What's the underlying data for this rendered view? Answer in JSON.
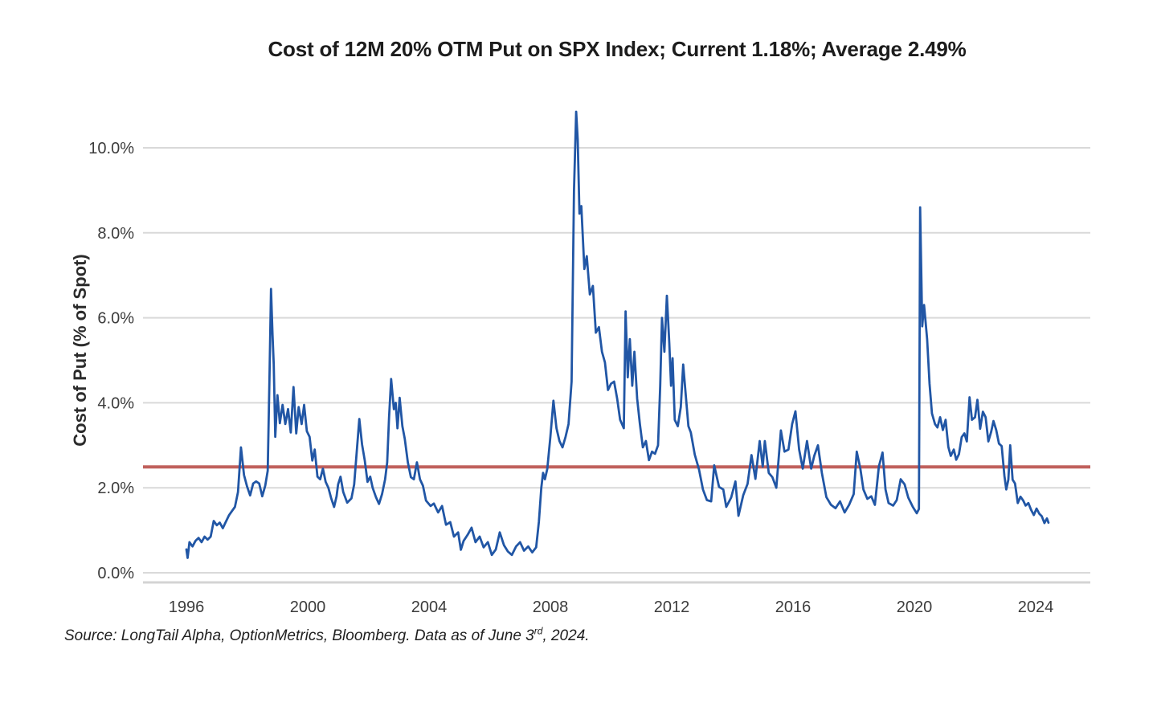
{
  "chart_data": {
    "type": "line",
    "title": "Cost of 12M 20% OTM Put on SPX Index; Current 1.18%; Average 2.49%",
    "ylabel": "Cost of Put (% of Spot)",
    "xlabel": "",
    "current_pct": 1.18,
    "average_pct": 2.49,
    "grid": "horizontal",
    "legend": "none",
    "ylim": [
      0,
      11.2
    ],
    "xlim": [
      1994.6,
      2025.8
    ],
    "x_ticks": [
      1996,
      2000,
      2004,
      2008,
      2012,
      2016,
      2020,
      2024
    ],
    "y_ticks": [
      {
        "value": 0,
        "label": "0.0%"
      },
      {
        "value": 2,
        "label": "2.0%"
      },
      {
        "value": 4,
        "label": "4.0%"
      },
      {
        "value": 6,
        "label": "6.0%"
      },
      {
        "value": 8,
        "label": "8.0%"
      },
      {
        "value": 10,
        "label": "10.0%"
      }
    ],
    "colors": {
      "series": "#2156a5",
      "average_line": "#c0605c",
      "gridline": "#d9d9d9",
      "axis_line": "#d4d4d4"
    },
    "average_line": {
      "value": 2.49
    },
    "series": [
      {
        "name": "Cost of 12M 20% OTM Put on SPX (% of spot)",
        "points": [
          [
            1996.0,
            0.55
          ],
          [
            1996.04,
            0.35
          ],
          [
            1996.1,
            0.72
          ],
          [
            1996.2,
            0.62
          ],
          [
            1996.3,
            0.75
          ],
          [
            1996.4,
            0.82
          ],
          [
            1996.5,
            0.72
          ],
          [
            1996.6,
            0.85
          ],
          [
            1996.7,
            0.78
          ],
          [
            1996.8,
            0.85
          ],
          [
            1996.9,
            1.22
          ],
          [
            1997.0,
            1.12
          ],
          [
            1997.1,
            1.18
          ],
          [
            1997.2,
            1.05
          ],
          [
            1997.3,
            1.2
          ],
          [
            1997.4,
            1.35
          ],
          [
            1997.5,
            1.45
          ],
          [
            1997.6,
            1.55
          ],
          [
            1997.7,
            1.9
          ],
          [
            1997.8,
            2.95
          ],
          [
            1997.9,
            2.3
          ],
          [
            1998.0,
            2.03
          ],
          [
            1998.1,
            1.82
          ],
          [
            1998.2,
            2.1
          ],
          [
            1998.3,
            2.15
          ],
          [
            1998.4,
            2.1
          ],
          [
            1998.5,
            1.8
          ],
          [
            1998.6,
            2.05
          ],
          [
            1998.68,
            2.4
          ],
          [
            1998.74,
            4.6
          ],
          [
            1998.79,
            6.68
          ],
          [
            1998.84,
            5.6
          ],
          [
            1998.88,
            4.9
          ],
          [
            1998.93,
            3.2
          ],
          [
            1999.0,
            4.18
          ],
          [
            1999.08,
            3.52
          ],
          [
            1999.17,
            3.95
          ],
          [
            1999.26,
            3.5
          ],
          [
            1999.35,
            3.85
          ],
          [
            1999.44,
            3.3
          ],
          [
            1999.53,
            4.37
          ],
          [
            1999.62,
            3.28
          ],
          [
            1999.7,
            3.9
          ],
          [
            1999.8,
            3.5
          ],
          [
            1999.88,
            3.95
          ],
          [
            1999.97,
            3.33
          ],
          [
            2000.06,
            3.2
          ],
          [
            2000.15,
            2.64
          ],
          [
            2000.23,
            2.9
          ],
          [
            2000.32,
            2.26
          ],
          [
            2000.41,
            2.2
          ],
          [
            2000.5,
            2.45
          ],
          [
            2000.59,
            2.14
          ],
          [
            2000.68,
            2.0
          ],
          [
            2000.77,
            1.76
          ],
          [
            2000.87,
            1.55
          ],
          [
            2000.95,
            1.8
          ],
          [
            2001.0,
            2.08
          ],
          [
            2001.08,
            2.26
          ],
          [
            2001.17,
            1.9
          ],
          [
            2001.3,
            1.65
          ],
          [
            2001.44,
            1.75
          ],
          [
            2001.53,
            2.08
          ],
          [
            2001.62,
            2.9
          ],
          [
            2001.7,
            3.62
          ],
          [
            2001.79,
            3.02
          ],
          [
            2001.88,
            2.64
          ],
          [
            2001.97,
            2.14
          ],
          [
            2002.06,
            2.26
          ],
          [
            2002.14,
            2.0
          ],
          [
            2002.25,
            1.78
          ],
          [
            2002.35,
            1.62
          ],
          [
            2002.45,
            1.85
          ],
          [
            2002.55,
            2.2
          ],
          [
            2002.62,
            2.6
          ],
          [
            2002.68,
            3.65
          ],
          [
            2002.75,
            4.56
          ],
          [
            2002.84,
            3.85
          ],
          [
            2002.9,
            4.0
          ],
          [
            2002.96,
            3.4
          ],
          [
            2003.03,
            4.12
          ],
          [
            2003.12,
            3.45
          ],
          [
            2003.2,
            3.15
          ],
          [
            2003.3,
            2.6
          ],
          [
            2003.4,
            2.25
          ],
          [
            2003.5,
            2.2
          ],
          [
            2003.6,
            2.6
          ],
          [
            2003.7,
            2.2
          ],
          [
            2003.8,
            2.05
          ],
          [
            2003.9,
            1.7
          ],
          [
            2004.05,
            1.57
          ],
          [
            2004.16,
            1.63
          ],
          [
            2004.3,
            1.42
          ],
          [
            2004.43,
            1.57
          ],
          [
            2004.56,
            1.13
          ],
          [
            2004.7,
            1.19
          ],
          [
            2004.82,
            0.85
          ],
          [
            2004.96,
            0.95
          ],
          [
            2005.05,
            0.54
          ],
          [
            2005.14,
            0.75
          ],
          [
            2005.27,
            0.89
          ],
          [
            2005.4,
            1.06
          ],
          [
            2005.53,
            0.72
          ],
          [
            2005.67,
            0.85
          ],
          [
            2005.8,
            0.6
          ],
          [
            2005.94,
            0.72
          ],
          [
            2006.07,
            0.42
          ],
          [
            2006.2,
            0.55
          ],
          [
            2006.33,
            0.95
          ],
          [
            2006.47,
            0.65
          ],
          [
            2006.6,
            0.5
          ],
          [
            2006.73,
            0.42
          ],
          [
            2006.87,
            0.62
          ],
          [
            2007.0,
            0.72
          ],
          [
            2007.13,
            0.52
          ],
          [
            2007.27,
            0.62
          ],
          [
            2007.4,
            0.48
          ],
          [
            2007.53,
            0.6
          ],
          [
            2007.62,
            1.2
          ],
          [
            2007.7,
            2.0
          ],
          [
            2007.76,
            2.35
          ],
          [
            2007.82,
            2.2
          ],
          [
            2007.9,
            2.45
          ],
          [
            2008.0,
            3.2
          ],
          [
            2008.1,
            4.05
          ],
          [
            2008.2,
            3.4
          ],
          [
            2008.3,
            3.1
          ],
          [
            2008.4,
            2.95
          ],
          [
            2008.5,
            3.2
          ],
          [
            2008.6,
            3.5
          ],
          [
            2008.7,
            4.5
          ],
          [
            2008.78,
            9.0
          ],
          [
            2008.85,
            10.85
          ],
          [
            2008.9,
            10.2
          ],
          [
            2008.96,
            8.45
          ],
          [
            2009.02,
            8.63
          ],
          [
            2009.12,
            7.15
          ],
          [
            2009.2,
            7.45
          ],
          [
            2009.3,
            6.55
          ],
          [
            2009.4,
            6.75
          ],
          [
            2009.5,
            5.65
          ],
          [
            2009.6,
            5.78
          ],
          [
            2009.7,
            5.2
          ],
          [
            2009.8,
            4.95
          ],
          [
            2009.9,
            4.3
          ],
          [
            2010.0,
            4.45
          ],
          [
            2010.1,
            4.5
          ],
          [
            2010.2,
            4.1
          ],
          [
            2010.3,
            3.6
          ],
          [
            2010.42,
            3.4
          ],
          [
            2010.48,
            6.15
          ],
          [
            2010.55,
            4.6
          ],
          [
            2010.62,
            5.5
          ],
          [
            2010.7,
            4.4
          ],
          [
            2010.77,
            5.2
          ],
          [
            2010.86,
            4.1
          ],
          [
            2010.95,
            3.5
          ],
          [
            2011.05,
            2.95
          ],
          [
            2011.15,
            3.1
          ],
          [
            2011.25,
            2.65
          ],
          [
            2011.35,
            2.85
          ],
          [
            2011.45,
            2.8
          ],
          [
            2011.55,
            3.0
          ],
          [
            2011.62,
            4.4
          ],
          [
            2011.68,
            6.0
          ],
          [
            2011.76,
            5.2
          ],
          [
            2011.84,
            6.52
          ],
          [
            2011.92,
            5.4
          ],
          [
            2011.98,
            4.4
          ],
          [
            2012.03,
            5.05
          ],
          [
            2012.1,
            3.6
          ],
          [
            2012.2,
            3.45
          ],
          [
            2012.3,
            3.9
          ],
          [
            2012.38,
            4.9
          ],
          [
            2012.46,
            4.2
          ],
          [
            2012.55,
            3.45
          ],
          [
            2012.63,
            3.3
          ],
          [
            2012.76,
            2.78
          ],
          [
            2012.9,
            2.43
          ],
          [
            2013.03,
            1.96
          ],
          [
            2013.16,
            1.71
          ],
          [
            2013.3,
            1.68
          ],
          [
            2013.4,
            2.53
          ],
          [
            2013.56,
            2.02
          ],
          [
            2013.7,
            1.96
          ],
          [
            2013.8,
            1.55
          ],
          [
            2013.96,
            1.77
          ],
          [
            2014.1,
            2.15
          ],
          [
            2014.2,
            1.34
          ],
          [
            2014.36,
            1.83
          ],
          [
            2014.5,
            2.09
          ],
          [
            2014.63,
            2.77
          ],
          [
            2014.76,
            2.21
          ],
          [
            2014.9,
            3.1
          ],
          [
            2015.0,
            2.5
          ],
          [
            2015.07,
            3.1
          ],
          [
            2015.2,
            2.35
          ],
          [
            2015.32,
            2.25
          ],
          [
            2015.45,
            2.0
          ],
          [
            2015.6,
            3.35
          ],
          [
            2015.72,
            2.85
          ],
          [
            2015.85,
            2.9
          ],
          [
            2015.97,
            3.5
          ],
          [
            2016.08,
            3.8
          ],
          [
            2016.2,
            2.9
          ],
          [
            2016.32,
            2.45
          ],
          [
            2016.46,
            3.1
          ],
          [
            2016.6,
            2.45
          ],
          [
            2016.7,
            2.75
          ],
          [
            2016.82,
            3.0
          ],
          [
            2016.95,
            2.35
          ],
          [
            2017.1,
            1.78
          ],
          [
            2017.25,
            1.6
          ],
          [
            2017.4,
            1.52
          ],
          [
            2017.55,
            1.68
          ],
          [
            2017.7,
            1.42
          ],
          [
            2017.85,
            1.6
          ],
          [
            2018.0,
            1.85
          ],
          [
            2018.1,
            2.85
          ],
          [
            2018.22,
            2.45
          ],
          [
            2018.32,
            1.96
          ],
          [
            2018.45,
            1.74
          ],
          [
            2018.58,
            1.8
          ],
          [
            2018.7,
            1.6
          ],
          [
            2018.83,
            2.5
          ],
          [
            2018.95,
            2.83
          ],
          [
            2019.05,
            1.96
          ],
          [
            2019.15,
            1.64
          ],
          [
            2019.3,
            1.58
          ],
          [
            2019.42,
            1.71
          ],
          [
            2019.55,
            2.2
          ],
          [
            2019.68,
            2.08
          ],
          [
            2019.8,
            1.77
          ],
          [
            2019.95,
            1.55
          ],
          [
            2020.08,
            1.4
          ],
          [
            2020.15,
            1.5
          ],
          [
            2020.19,
            8.6
          ],
          [
            2020.26,
            5.8
          ],
          [
            2020.32,
            6.3
          ],
          [
            2020.42,
            5.5
          ],
          [
            2020.5,
            4.45
          ],
          [
            2020.58,
            3.75
          ],
          [
            2020.68,
            3.5
          ],
          [
            2020.76,
            3.42
          ],
          [
            2020.85,
            3.66
          ],
          [
            2020.94,
            3.36
          ],
          [
            2021.03,
            3.6
          ],
          [
            2021.12,
            2.96
          ],
          [
            2021.2,
            2.75
          ],
          [
            2021.3,
            2.9
          ],
          [
            2021.38,
            2.66
          ],
          [
            2021.47,
            2.79
          ],
          [
            2021.56,
            3.19
          ],
          [
            2021.65,
            3.28
          ],
          [
            2021.73,
            3.09
          ],
          [
            2021.82,
            4.13
          ],
          [
            2021.9,
            3.6
          ],
          [
            2022.0,
            3.66
          ],
          [
            2022.08,
            4.07
          ],
          [
            2022.17,
            3.39
          ],
          [
            2022.26,
            3.79
          ],
          [
            2022.35,
            3.66
          ],
          [
            2022.44,
            3.09
          ],
          [
            2022.53,
            3.31
          ],
          [
            2022.61,
            3.57
          ],
          [
            2022.7,
            3.36
          ],
          [
            2022.79,
            3.04
          ],
          [
            2022.88,
            2.98
          ],
          [
            2022.97,
            2.28
          ],
          [
            2023.03,
            1.96
          ],
          [
            2023.1,
            2.19
          ],
          [
            2023.16,
            3.0
          ],
          [
            2023.24,
            2.19
          ],
          [
            2023.32,
            2.1
          ],
          [
            2023.41,
            1.64
          ],
          [
            2023.5,
            1.79
          ],
          [
            2023.59,
            1.7
          ],
          [
            2023.67,
            1.58
          ],
          [
            2023.76,
            1.64
          ],
          [
            2023.85,
            1.48
          ],
          [
            2023.94,
            1.36
          ],
          [
            2024.03,
            1.51
          ],
          [
            2024.12,
            1.39
          ],
          [
            2024.2,
            1.33
          ],
          [
            2024.29,
            1.17
          ],
          [
            2024.37,
            1.28
          ],
          [
            2024.42,
            1.18
          ]
        ]
      }
    ]
  },
  "source": {
    "prefix": "Source: LongTail Alpha, OptionMetrics, Bloomberg. Data as of June 3",
    "superscript": "rd",
    "suffix": ", 2024."
  }
}
